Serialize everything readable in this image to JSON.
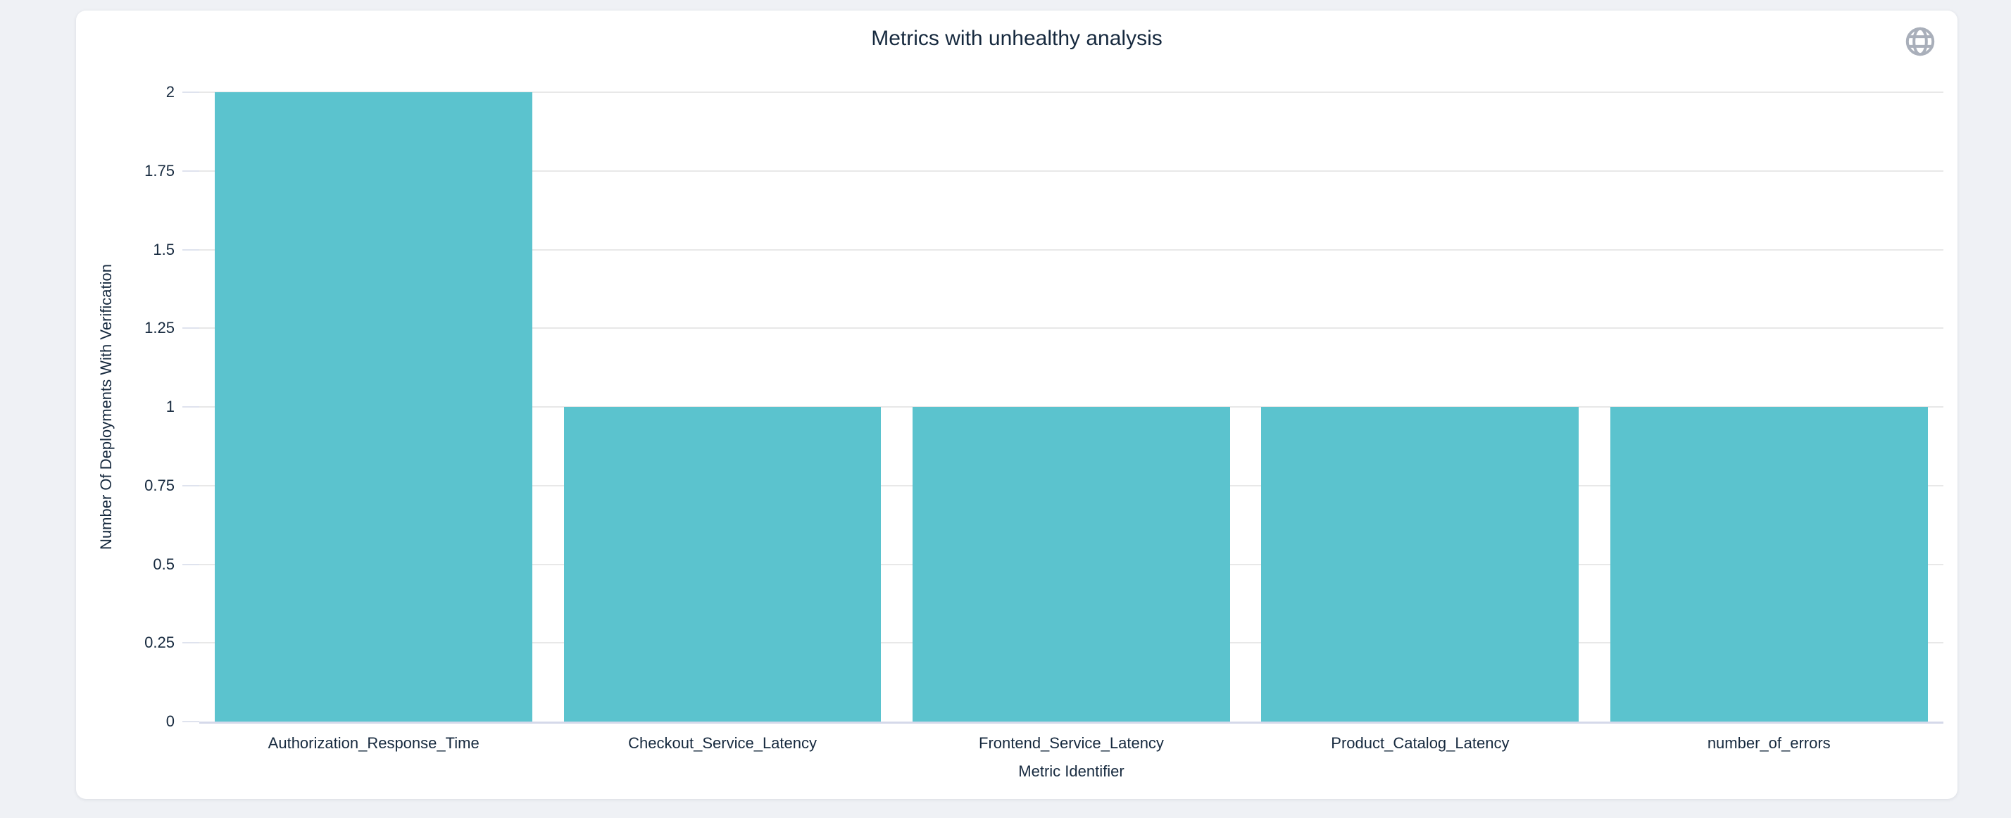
{
  "card": {
    "title": "Metrics with unhealthy analysis"
  },
  "icons": {
    "globe": "globe-icon"
  },
  "colors": {
    "page_background": "#eff1f5",
    "card_background": "#ffffff",
    "bar": "#5bc3ce",
    "gridline": "#e8e8e8",
    "axis_line": "#d5d9ea",
    "tick_mark": "#dfe3ee",
    "text": "#16293e",
    "icon": "#a9afba"
  },
  "chart_data": {
    "type": "bar",
    "title": "Metrics with unhealthy analysis",
    "categories": [
      "Authorization_Response_Time",
      "Checkout_Service_Latency",
      "Frontend_Service_Latency",
      "Product_Catalog_Latency",
      "number_of_errors"
    ],
    "values": [
      2,
      1,
      1,
      1,
      1
    ],
    "xlabel": "Metric Identifier",
    "ylabel": "Number Of Deployments With Verification",
    "ylim": [
      0,
      2
    ],
    "yticks": [
      0,
      0.25,
      0.5,
      0.75,
      1,
      1.25,
      1.5,
      1.75,
      2
    ],
    "grid": true,
    "legend": "none"
  }
}
